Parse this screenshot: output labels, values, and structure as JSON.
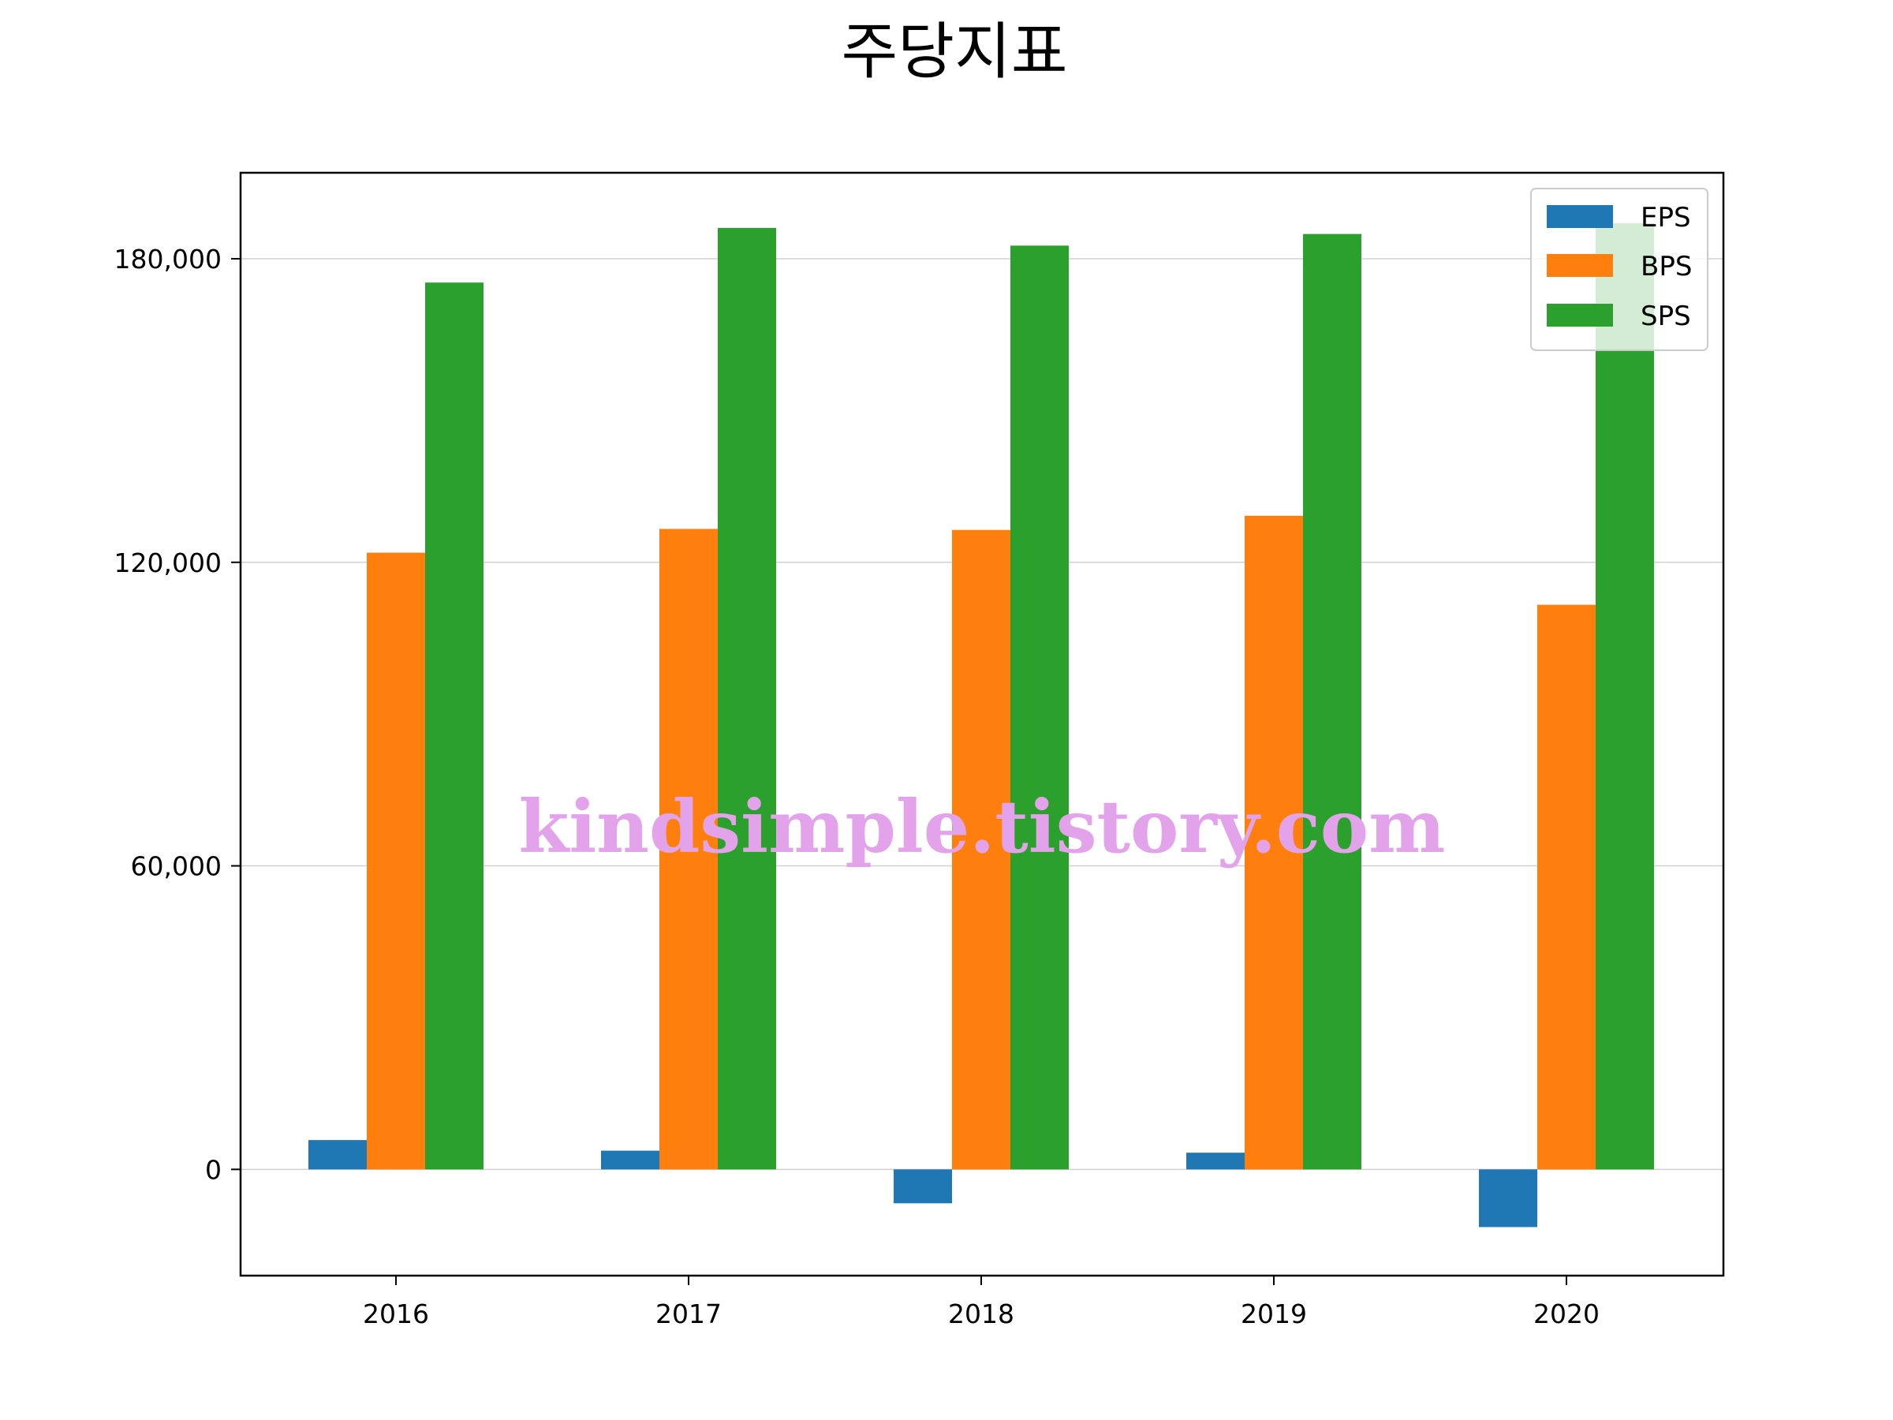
{
  "chart_data": {
    "type": "bar",
    "title": "주당지표",
    "categories": [
      "2016",
      "2017",
      "2018",
      "2019",
      "2020"
    ],
    "series": [
      {
        "name": "EPS",
        "color": "#1f77b4",
        "values": [
          5800,
          3700,
          -6700,
          3300,
          -11400
        ]
      },
      {
        "name": "BPS",
        "color": "#ff7f0e",
        "values": [
          121900,
          126600,
          126400,
          129200,
          111600
        ]
      },
      {
        "name": "SPS",
        "color": "#2ca02c",
        "values": [
          175300,
          186100,
          182600,
          184900,
          187000
        ]
      }
    ],
    "yticks": [
      0,
      60000,
      120000,
      180000
    ],
    "ytick_labels": [
      "0",
      "60,000",
      "120,000",
      "180,000"
    ],
    "ylim": [
      -21000,
      197000
    ],
    "grid": "y",
    "legend_position": "top-right"
  },
  "watermark": {
    "text": "kindsimple.tistory.com",
    "color": "#e3a3ea"
  }
}
